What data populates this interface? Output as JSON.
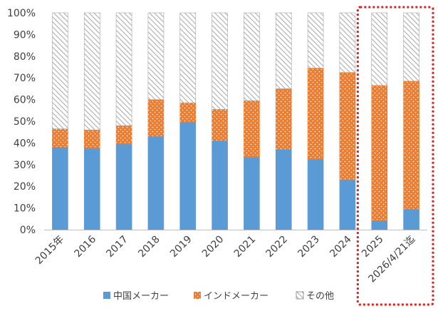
{
  "chart_data": {
    "type": "bar",
    "stacked": true,
    "categories": [
      "2015年",
      "2016",
      "2017",
      "2018",
      "2019",
      "2020",
      "2021",
      "2022",
      "2023",
      "2024",
      "2025",
      "2026/4/21迄"
    ],
    "series": [
      {
        "name": "中国メーカー",
        "color": "#5b9bd5",
        "pattern": "solid",
        "values": [
          38,
          37.5,
          39.5,
          43,
          49.5,
          41,
          33.5,
          37,
          32.5,
          23,
          4,
          9.5
        ]
      },
      {
        "name": "インドメーカー",
        "color": "#ed7d31",
        "pattern": "dots",
        "values": [
          8.5,
          8.5,
          8.5,
          17,
          9,
          14.5,
          26,
          28,
          42,
          49.5,
          62.5,
          59
        ]
      },
      {
        "name": "その他",
        "color": "#a6a6a6",
        "pattern": "hatch",
        "values": [
          53.5,
          54,
          52,
          40,
          41.5,
          44.5,
          40.5,
          35,
          25.5,
          27.5,
          33.5,
          31.5
        ]
      }
    ],
    "ylim": [
      0,
      100
    ],
    "yticks": [
      "0%",
      "10%",
      "20%",
      "30%",
      "40%",
      "50%",
      "60%",
      "70%",
      "80%",
      "90%",
      "100%"
    ],
    "grid": false,
    "legend": "bottom",
    "highlight_categories": [
      10,
      11
    ],
    "highlight_color": "#e0201c"
  }
}
